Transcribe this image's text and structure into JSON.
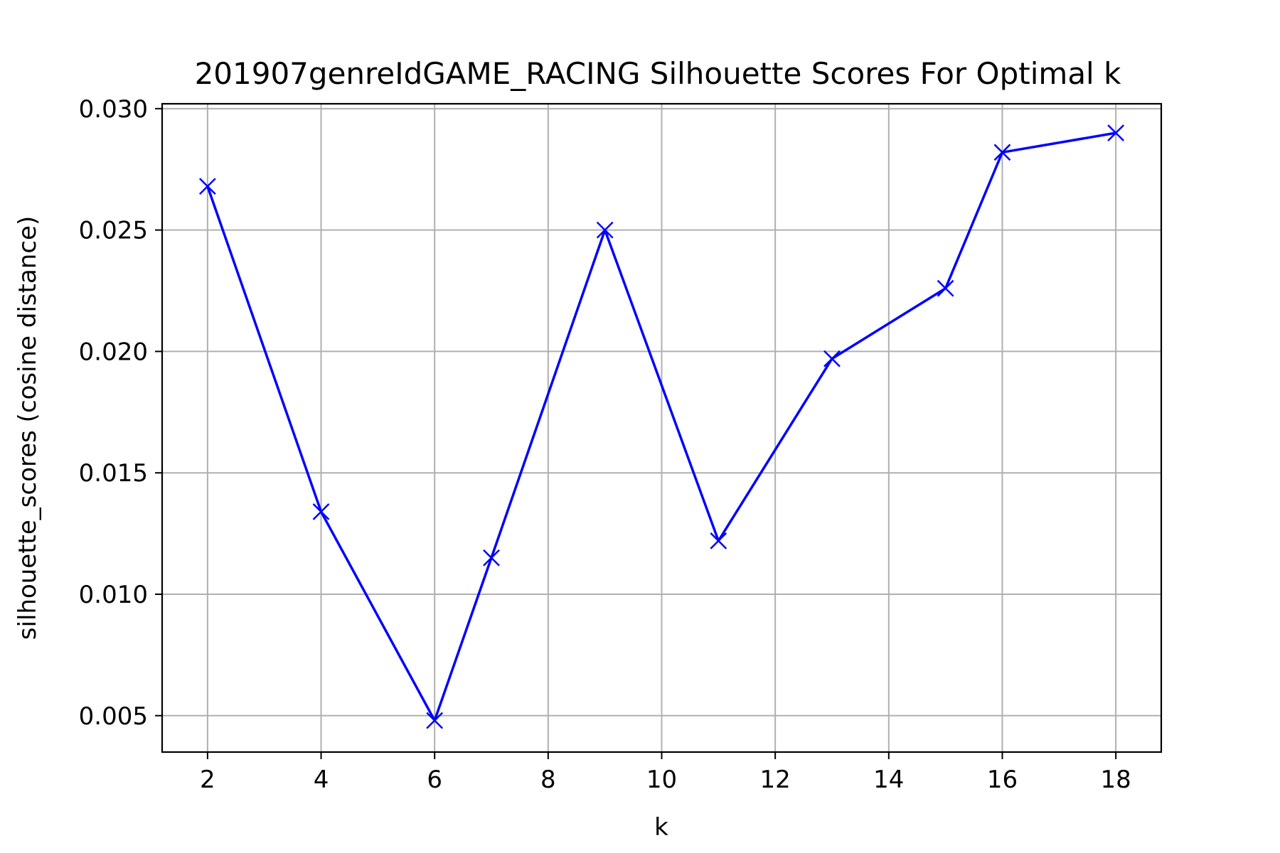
{
  "chart_data": {
    "type": "line",
    "title": "201907genreIdGAME_RACING Silhouette Scores For Optimal k",
    "xlabel": "k",
    "ylabel": "silhouette_scores (cosine distance)",
    "xlim": [
      1.2,
      18.8
    ],
    "ylim": [
      0.0035,
      0.0302
    ],
    "x_ticks": [
      2,
      4,
      6,
      8,
      10,
      12,
      14,
      16,
      18
    ],
    "x_tick_labels": [
      "2",
      "4",
      "6",
      "8",
      "10",
      "12",
      "14",
      "16",
      "18"
    ],
    "y_ticks": [
      0.005,
      0.01,
      0.015,
      0.02,
      0.025,
      0.03
    ],
    "y_tick_labels": [
      "0.005",
      "0.010",
      "0.015",
      "0.020",
      "0.025",
      "0.030"
    ],
    "grid": true,
    "marker": "x",
    "color": "#0000ff",
    "series": [
      {
        "x": [
          2,
          4,
          6,
          7,
          9,
          11,
          13,
          15,
          16,
          18
        ],
        "y": [
          0.0268,
          0.0134,
          0.0048,
          0.0115,
          0.025,
          0.0122,
          0.0197,
          0.0226,
          0.0282,
          0.029
        ]
      }
    ]
  }
}
